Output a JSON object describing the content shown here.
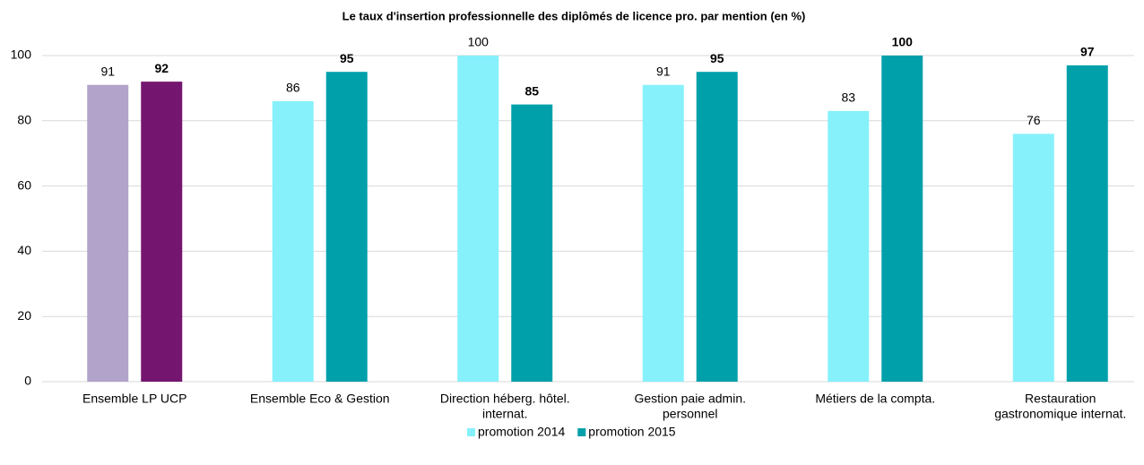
{
  "chart_data": {
    "type": "bar",
    "title": "Le taux d'insertion professionnelle  des diplômés  de licence pro. par mention  (en %)",
    "categories": [
      [
        "Ensemble LP UCP"
      ],
      [
        "Ensemble Eco & Gestion"
      ],
      [
        "Direction héberg. hôtel.",
        "internat."
      ],
      [
        "Gestion paie admin.",
        "personnel"
      ],
      [
        "Métiers de la compta."
      ],
      [
        "Restauration",
        "gastronomique internat."
      ]
    ],
    "series": [
      {
        "name": "promotion 2014",
        "color": "#86f1fb",
        "colors": [
          "#b1a3c9",
          "#86f1fb",
          "#86f1fb",
          "#86f1fb",
          "#86f1fb",
          "#86f1fb"
        ],
        "label_colors": [
          "#000000",
          "#000000",
          "#000000",
          "#000000",
          "#000000",
          "#000000"
        ],
        "label_bold": false,
        "values": [
          91,
          86,
          100,
          91,
          83,
          76
        ]
      },
      {
        "name": "promotion 2015",
        "color": "#00a0ab",
        "colors": [
          "#74166f",
          "#00a0ab",
          "#00a0ab",
          "#00a0ab",
          "#00a0ab",
          "#00a0ab"
        ],
        "label_colors": [
          "#74166f",
          "#000000",
          "#000000",
          "#000000",
          "#000000",
          "#000000"
        ],
        "label_bold": true,
        "values": [
          92,
          95,
          85,
          95,
          100,
          97
        ]
      }
    ],
    "ylim": [
      0,
      100
    ],
    "yticks": [
      0,
      20,
      40,
      60,
      80,
      100
    ],
    "grid": true,
    "legend": "bottom"
  }
}
